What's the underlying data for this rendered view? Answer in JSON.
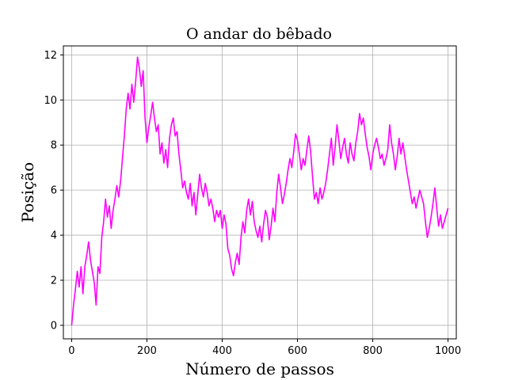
{
  "chart_data": {
    "type": "line",
    "title": "O andar do bêbado",
    "xlabel": "Número de passos",
    "ylabel": "Posição",
    "xlim": [
      -22,
      1022
    ],
    "ylim": [
      -0.6,
      12.4
    ],
    "xticks": [
      0,
      200,
      400,
      600,
      800,
      1000
    ],
    "yticks": [
      0,
      2,
      4,
      6,
      8,
      10,
      12
    ],
    "grid": true,
    "series": [
      {
        "color": "#ff00ff",
        "x": [
          0,
          5,
          10,
          15,
          20,
          25,
          30,
          35,
          40,
          45,
          50,
          55,
          60,
          65,
          70,
          75,
          80,
          85,
          90,
          95,
          100,
          105,
          110,
          115,
          120,
          125,
          130,
          135,
          140,
          145,
          150,
          155,
          160,
          165,
          170,
          175,
          180,
          185,
          190,
          195,
          200,
          205,
          210,
          215,
          220,
          225,
          230,
          235,
          240,
          245,
          250,
          255,
          260,
          265,
          270,
          275,
          280,
          285,
          290,
          295,
          300,
          305,
          310,
          315,
          320,
          325,
          330,
          335,
          340,
          345,
          350,
          355,
          360,
          365,
          370,
          375,
          380,
          385,
          390,
          395,
          400,
          405,
          410,
          415,
          420,
          425,
          430,
          435,
          440,
          445,
          450,
          455,
          460,
          465,
          470,
          475,
          480,
          485,
          490,
          495,
          500,
          505,
          510,
          515,
          520,
          525,
          530,
          535,
          540,
          545,
          550,
          555,
          560,
          565,
          570,
          575,
          580,
          585,
          590,
          595,
          600,
          605,
          610,
          615,
          620,
          625,
          630,
          635,
          640,
          645,
          650,
          655,
          660,
          665,
          670,
          675,
          680,
          685,
          690,
          695,
          700,
          705,
          710,
          715,
          720,
          725,
          730,
          735,
          740,
          745,
          750,
          755,
          760,
          765,
          770,
          775,
          780,
          785,
          790,
          795,
          800,
          805,
          810,
          815,
          820,
          825,
          830,
          835,
          840,
          845,
          850,
          855,
          860,
          865,
          870,
          875,
          880,
          885,
          890,
          895,
          900,
          905,
          910,
          915,
          920,
          925,
          930,
          935,
          940,
          945,
          950,
          955,
          960,
          965,
          970,
          975,
          980,
          985,
          990,
          995,
          1000
        ],
        "y": [
          0.0,
          0.9,
          1.6,
          2.4,
          1.7,
          2.6,
          1.4,
          2.6,
          3.1,
          3.7,
          2.9,
          2.4,
          1.9,
          0.9,
          2.6,
          2.3,
          3.9,
          4.6,
          5.6,
          4.8,
          5.3,
          4.3,
          5.1,
          5.6,
          6.2,
          5.7,
          6.4,
          7.4,
          8.4,
          9.6,
          10.3,
          9.6,
          10.7,
          9.9,
          10.8,
          11.9,
          11.4,
          10.6,
          11.3,
          9.2,
          8.1,
          8.8,
          9.3,
          9.9,
          9.2,
          8.6,
          8.9,
          7.6,
          8.1,
          7.2,
          7.8,
          7.0,
          8.3,
          8.9,
          9.2,
          8.4,
          8.6,
          7.6,
          6.9,
          6.1,
          6.4,
          5.9,
          5.6,
          6.3,
          5.3,
          5.9,
          4.9,
          5.8,
          6.7,
          6.1,
          5.7,
          6.3,
          5.9,
          5.3,
          5.6,
          5.2,
          4.6,
          5.1,
          4.8,
          5.1,
          4.3,
          4.9,
          4.5,
          3.4,
          3.1,
          2.5,
          2.2,
          2.8,
          3.2,
          2.7,
          3.9,
          4.6,
          4.1,
          5.1,
          5.6,
          4.9,
          5.5,
          4.6,
          4.2,
          3.9,
          4.4,
          3.7,
          4.5,
          5.1,
          4.8,
          3.8,
          4.4,
          5.2,
          4.6,
          5.9,
          6.7,
          6.1,
          5.4,
          5.8,
          6.3,
          6.9,
          7.4,
          7.0,
          7.7,
          8.5,
          8.2,
          7.6,
          6.9,
          7.4,
          7.1,
          7.8,
          8.4,
          7.7,
          6.6,
          5.6,
          5.9,
          5.4,
          6.1,
          5.6,
          5.9,
          6.3,
          6.9,
          7.6,
          8.3,
          7.1,
          7.9,
          8.9,
          8.2,
          7.4,
          7.9,
          8.3,
          7.6,
          7.2,
          8.1,
          7.6,
          7.3,
          8.1,
          8.6,
          9.4,
          8.9,
          9.2,
          8.5,
          7.9,
          7.5,
          6.9,
          7.6,
          8.0,
          8.3,
          7.9,
          7.4,
          7.6,
          7.1,
          7.4,
          7.8,
          8.9,
          8.1,
          7.6,
          6.9,
          7.5,
          8.3,
          7.6,
          8.1,
          7.5,
          6.9,
          6.4,
          5.9,
          5.4,
          5.7,
          5.2,
          5.6,
          6.0,
          5.7,
          5.4,
          4.6,
          3.9,
          4.3,
          4.8,
          5.4,
          6.1,
          5.2,
          4.4,
          4.9,
          4.3,
          4.6,
          4.9,
          5.2
        ]
      }
    ]
  }
}
